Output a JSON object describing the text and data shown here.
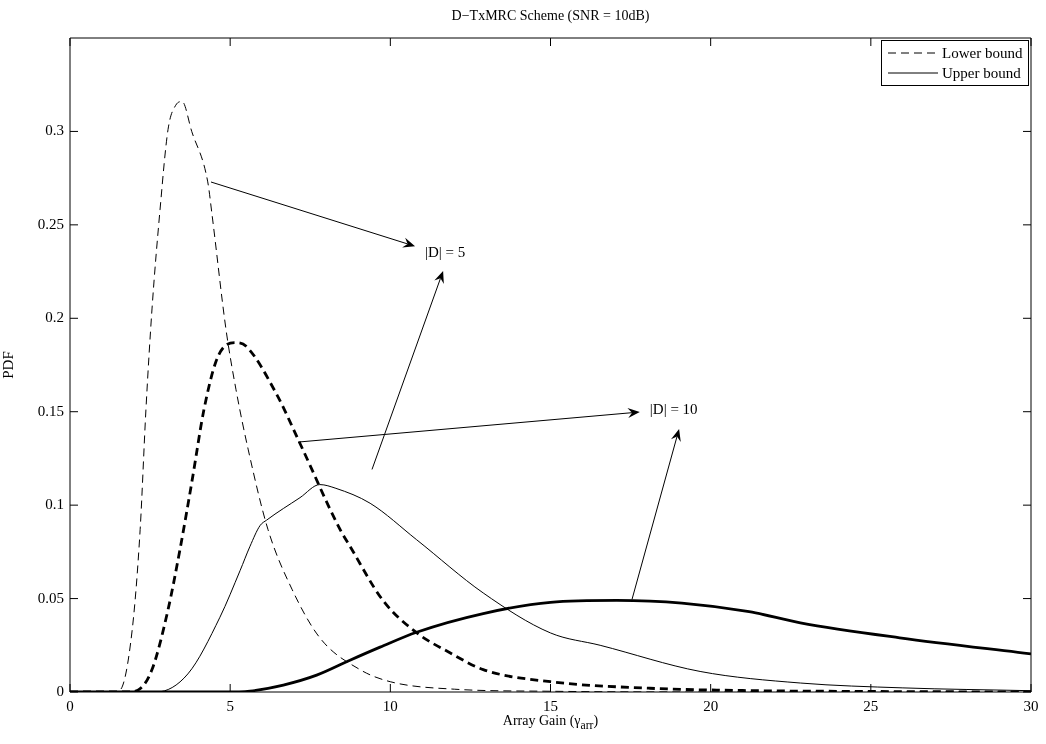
{
  "chart_data": {
    "type": "line",
    "title": "D−TxMRC Scheme (SNR = 10dB)",
    "xlabel": "Array Gain (γ$_{arr}$)",
    "ylabel": "PDF",
    "xlim": [
      0,
      30
    ],
    "xticks": [
      0,
      5,
      10,
      15,
      20,
      25,
      30
    ],
    "ylim": [
      0,
      0.35
    ],
    "yticks": [
      0,
      0.05,
      0.1,
      0.15,
      0.2,
      0.25,
      0.3
    ],
    "grid": false,
    "legend": "top right",
    "marker": "none",
    "series": [
      {
        "name": "Lower bound",
        "color": "#000000",
        "line_style": "dashed",
        "x": [
          0,
          1.3,
          1.56,
          1.94,
          2.19,
          2.37,
          2.56,
          2.81,
          3.06,
          3.3,
          3.5,
          3.8,
          4.3,
          4.43,
          4.87,
          5.18,
          5.56,
          6.18,
          6.93,
          7.8,
          9.05,
          10,
          12,
          15,
          20,
          30
        ],
        "values": [
          0,
          0,
          0.001,
          0.033,
          0.087,
          0.151,
          0.205,
          0.258,
          0.301,
          0.314,
          0.316,
          0.3,
          0.273,
          0.256,
          0.194,
          0.162,
          0.13,
          0.087,
          0.055,
          0.029,
          0.012,
          0.0055,
          0.0015,
          0.0004,
          0,
          0
        ]
      },
      {
        "color": "#000000",
        "line_style": "dashed",
        "x": [
          0,
          1.8,
          2.12,
          2.56,
          3.06,
          3.43,
          3.81,
          4.18,
          4.56,
          4.9,
          5.18,
          5.5,
          6.43,
          7.18,
          8.43,
          8.74,
          9.77,
          10.8,
          11.86,
          12.9,
          15,
          18.1,
          21,
          25,
          30
        ],
        "values": [
          0,
          0,
          0.001,
          0.012,
          0.044,
          0.076,
          0.113,
          0.151,
          0.177,
          0.186,
          0.187,
          0.185,
          0.16,
          0.133,
          0.087,
          0.078,
          0.049,
          0.032,
          0.021,
          0.012,
          0.0055,
          0.002,
          0.0008,
          0.0003,
          0
        ]
      },
      {
        "name": "Upper bound",
        "color": "#000000",
        "line_style": "solid",
        "x": [
          0,
          2.7,
          3.68,
          4.68,
          5.31,
          5.62,
          5.93,
          6.14,
          7.18,
          7.8,
          8.3,
          9.37,
          10.82,
          12.9,
          15,
          16.55,
          19.67,
          22.8,
          26,
          30
        ],
        "values": [
          0,
          0,
          0.0097,
          0.04,
          0.065,
          0.078,
          0.089,
          0.092,
          0.104,
          0.111,
          0.109,
          0.101,
          0.0815,
          0.053,
          0.0316,
          0.025,
          0.011,
          0.0048,
          0.0022,
          0.0007
        ]
      },
      {
        "color": "#000000",
        "line_style": "solid",
        "x": [
          0,
          4.8,
          5.62,
          6.66,
          7.7,
          8.74,
          9.68,
          10.82,
          12.9,
          15,
          17.07,
          19.1,
          21.2,
          22.8,
          25.9,
          30
        ],
        "values": [
          0,
          0,
          0.0005,
          0.0037,
          0.009,
          0.017,
          0.024,
          0.032,
          0.042,
          0.048,
          0.049,
          0.0476,
          0.043,
          0.037,
          0.029,
          0.0204
        ]
      }
    ],
    "annotations": [
      {
        "text": "|D| = 5",
        "x": 4.4,
        "y": 0.273
      },
      {
        "text": "|D| = 10",
        "x": 7.12,
        "y": 0.134
      }
    ]
  }
}
